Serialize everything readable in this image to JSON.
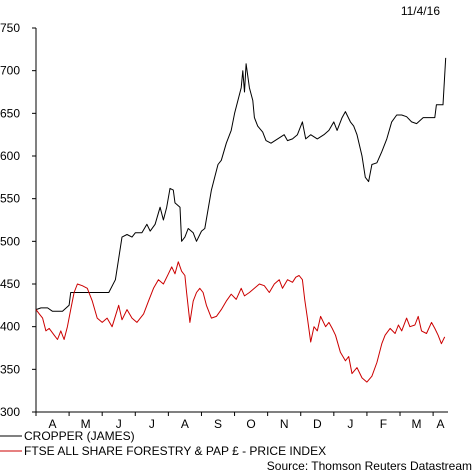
{
  "chart_data": {
    "type": "line",
    "date": "11/4/16",
    "source": "Source: Thomson Reuters Datastream",
    "y_ticks": [
      300,
      350,
      400,
      450,
      500,
      550,
      600,
      650,
      700,
      750
    ],
    "ylim": [
      300,
      750
    ],
    "x_months": [
      "A",
      "M",
      "J",
      "J",
      "A",
      "S",
      "O",
      "N",
      "D",
      "J",
      "F",
      "M",
      "A"
    ],
    "xlim": [
      0,
      12.45
    ],
    "grid": false,
    "legend_position": "bottom-left",
    "series": [
      {
        "name": "CROPPER (JAMES)",
        "color": "#000000",
        "points": [
          [
            0.0,
            420
          ],
          [
            0.15,
            422
          ],
          [
            0.35,
            422
          ],
          [
            0.5,
            418
          ],
          [
            0.8,
            418
          ],
          [
            1.0,
            425
          ],
          [
            1.05,
            440
          ],
          [
            1.3,
            440
          ],
          [
            1.6,
            440
          ],
          [
            2.0,
            440
          ],
          [
            2.2,
            440
          ],
          [
            2.4,
            455
          ],
          [
            2.5,
            480
          ],
          [
            2.6,
            505
          ],
          [
            2.75,
            508
          ],
          [
            2.9,
            505
          ],
          [
            3.0,
            510
          ],
          [
            3.2,
            510
          ],
          [
            3.35,
            520
          ],
          [
            3.45,
            512
          ],
          [
            3.6,
            520
          ],
          [
            3.75,
            540
          ],
          [
            3.85,
            525
          ],
          [
            3.95,
            540
          ],
          [
            4.05,
            562
          ],
          [
            4.15,
            560
          ],
          [
            4.2,
            545
          ],
          [
            4.35,
            540
          ],
          [
            4.4,
            500
          ],
          [
            4.5,
            505
          ],
          [
            4.6,
            515
          ],
          [
            4.75,
            510
          ],
          [
            4.85,
            500
          ],
          [
            5.0,
            512
          ],
          [
            5.1,
            515
          ],
          [
            5.3,
            560
          ],
          [
            5.4,
            575
          ],
          [
            5.5,
            590
          ],
          [
            5.6,
            595
          ],
          [
            5.75,
            615
          ],
          [
            5.9,
            630
          ],
          [
            6.0,
            650
          ],
          [
            6.1,
            665
          ],
          [
            6.2,
            680
          ],
          [
            6.25,
            700
          ],
          [
            6.3,
            675
          ],
          [
            6.35,
            708
          ],
          [
            6.45,
            680
          ],
          [
            6.55,
            665
          ],
          [
            6.6,
            645
          ],
          [
            6.7,
            635
          ],
          [
            6.85,
            628
          ],
          [
            6.95,
            618
          ],
          [
            7.1,
            615
          ],
          [
            7.3,
            620
          ],
          [
            7.5,
            625
          ],
          [
            7.6,
            618
          ],
          [
            7.75,
            620
          ],
          [
            7.9,
            625
          ],
          [
            8.05,
            640
          ],
          [
            8.15,
            620
          ],
          [
            8.3,
            625
          ],
          [
            8.5,
            620
          ],
          [
            8.7,
            625
          ],
          [
            8.85,
            630
          ],
          [
            9.0,
            640
          ],
          [
            9.1,
            630
          ],
          [
            9.25,
            645
          ],
          [
            9.35,
            652
          ],
          [
            9.5,
            640
          ],
          [
            9.6,
            635
          ],
          [
            9.7,
            625
          ],
          [
            9.85,
            600
          ],
          [
            9.95,
            575
          ],
          [
            10.05,
            570
          ],
          [
            10.15,
            590
          ],
          [
            10.3,
            592
          ],
          [
            10.45,
            605
          ],
          [
            10.6,
            620
          ],
          [
            10.75,
            640
          ],
          [
            10.9,
            648
          ],
          [
            11.05,
            648
          ],
          [
            11.2,
            646
          ],
          [
            11.35,
            640
          ],
          [
            11.5,
            638
          ],
          [
            11.7,
            645
          ],
          [
            11.9,
            645
          ],
          [
            12.05,
            645
          ],
          [
            12.1,
            660
          ],
          [
            12.3,
            660
          ],
          [
            12.38,
            715
          ]
        ]
      },
      {
        "name": "FTSE ALL SHARE FORESTRY & PAP £ - PRICE INDEX",
        "color": "#cc0000",
        "points": [
          [
            0.0,
            420
          ],
          [
            0.1,
            415
          ],
          [
            0.2,
            410
          ],
          [
            0.3,
            395
          ],
          [
            0.4,
            398
          ],
          [
            0.55,
            390
          ],
          [
            0.65,
            385
          ],
          [
            0.75,
            395
          ],
          [
            0.85,
            385
          ],
          [
            0.95,
            400
          ],
          [
            1.05,
            420
          ],
          [
            1.15,
            440
          ],
          [
            1.25,
            450
          ],
          [
            1.4,
            448
          ],
          [
            1.55,
            445
          ],
          [
            1.7,
            430
          ],
          [
            1.85,
            410
          ],
          [
            2.0,
            405
          ],
          [
            2.15,
            410
          ],
          [
            2.3,
            400
          ],
          [
            2.5,
            425
          ],
          [
            2.6,
            408
          ],
          [
            2.75,
            420
          ],
          [
            2.9,
            410
          ],
          [
            3.05,
            405
          ],
          [
            3.25,
            415
          ],
          [
            3.4,
            430
          ],
          [
            3.55,
            445
          ],
          [
            3.7,
            455
          ],
          [
            3.85,
            450
          ],
          [
            4.0,
            462
          ],
          [
            4.1,
            470
          ],
          [
            4.2,
            462
          ],
          [
            4.3,
            476
          ],
          [
            4.4,
            465
          ],
          [
            4.5,
            460
          ],
          [
            4.55,
            440
          ],
          [
            4.65,
            405
          ],
          [
            4.75,
            430
          ],
          [
            4.85,
            440
          ],
          [
            4.95,
            445
          ],
          [
            5.05,
            440
          ],
          [
            5.15,
            425
          ],
          [
            5.3,
            410
          ],
          [
            5.45,
            412
          ],
          [
            5.6,
            420
          ],
          [
            5.75,
            430
          ],
          [
            5.9,
            438
          ],
          [
            6.05,
            432
          ],
          [
            6.2,
            445
          ],
          [
            6.3,
            436
          ],
          [
            6.45,
            440
          ],
          [
            6.6,
            445
          ],
          [
            6.75,
            450
          ],
          [
            6.9,
            448
          ],
          [
            7.05,
            440
          ],
          [
            7.2,
            450
          ],
          [
            7.35,
            455
          ],
          [
            7.45,
            445
          ],
          [
            7.6,
            455
          ],
          [
            7.75,
            452
          ],
          [
            7.85,
            458
          ],
          [
            7.95,
            460
          ],
          [
            8.05,
            455
          ],
          [
            8.12,
            432
          ],
          [
            8.2,
            410
          ],
          [
            8.3,
            382
          ],
          [
            8.4,
            400
          ],
          [
            8.5,
            395
          ],
          [
            8.6,
            412
          ],
          [
            8.75,
            400
          ],
          [
            8.85,
            405
          ],
          [
            8.95,
            398
          ],
          [
            9.05,
            390
          ],
          [
            9.2,
            370
          ],
          [
            9.35,
            360
          ],
          [
            9.45,
            365
          ],
          [
            9.55,
            345
          ],
          [
            9.7,
            352
          ],
          [
            9.85,
            340
          ],
          [
            10.0,
            335
          ],
          [
            10.15,
            342
          ],
          [
            10.3,
            358
          ],
          [
            10.45,
            380
          ],
          [
            10.55,
            390
          ],
          [
            10.7,
            398
          ],
          [
            10.85,
            392
          ],
          [
            10.95,
            402
          ],
          [
            11.05,
            395
          ],
          [
            11.2,
            410
          ],
          [
            11.3,
            400
          ],
          [
            11.45,
            402
          ],
          [
            11.55,
            412
          ],
          [
            11.65,
            395
          ],
          [
            11.8,
            392
          ],
          [
            11.95,
            405
          ],
          [
            12.05,
            398
          ],
          [
            12.15,
            390
          ],
          [
            12.25,
            380
          ],
          [
            12.35,
            388
          ]
        ]
      }
    ]
  }
}
